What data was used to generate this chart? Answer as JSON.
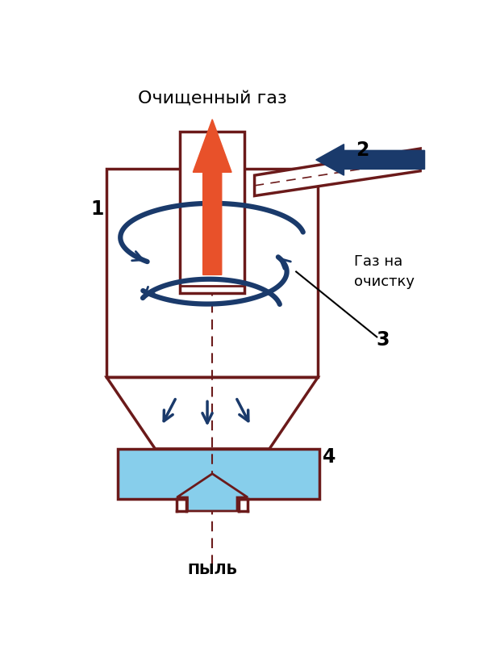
{
  "label_dust": "ПЫЛЬ",
  "label_gas_clean": "Очищенный газ",
  "label_gas_dirty": "Газ на\nочистку",
  "label_1": "1",
  "label_2": "2",
  "label_3": "3",
  "label_4": "4",
  "color_brown": "#6B1A1A",
  "color_blue_dark": "#1A3A6B",
  "color_orange": "#E8512A",
  "color_cyan": "#87CEEB",
  "color_bg": "#FFFFFF",
  "lw_main": 2.5
}
